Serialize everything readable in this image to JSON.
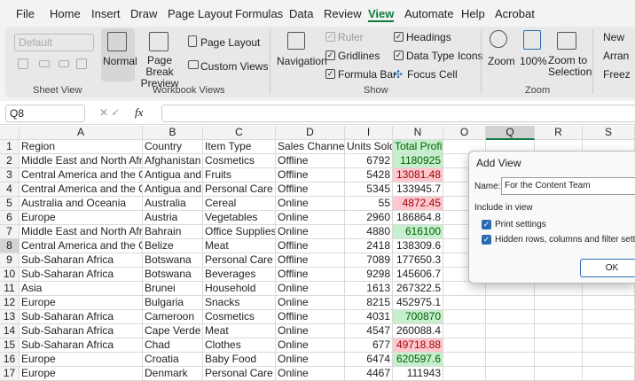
{
  "tabs": [
    "File",
    "Home",
    "Insert",
    "Draw",
    "Page Layout",
    "Formulas",
    "Data",
    "Review",
    "View",
    "Automate",
    "Help",
    "Acrobat"
  ],
  "ribbon": {
    "sheet_view": {
      "dropdown": "Default",
      "label": "Sheet View"
    },
    "workbook_views": {
      "normal": "Normal",
      "page_break_preview": "Page Break Preview",
      "page_layout": "Page Layout",
      "custom_views": "Custom Views",
      "label": "Workbook Views"
    },
    "show": {
      "navigation": "Navigation",
      "ruler": "Ruler",
      "gridlines": "Gridlines",
      "formula_bar": "Formula Bar",
      "headings": "Headings",
      "data_type_icons": "Data Type Icons",
      "focus_cell": "Focus Cell",
      "label": "Show"
    },
    "zoom": {
      "zoom": "Zoom",
      "hundred": "100%",
      "zoom_to_selection": "Zoom to Selection",
      "label": "Zoom"
    },
    "window": {
      "new": "New",
      "arrange": "Arran",
      "freeze": "Freez"
    }
  },
  "formula_bar": {
    "name_box": "Q8",
    "fx": "fx"
  },
  "sheet": {
    "columns": [
      "A",
      "B",
      "C",
      "D",
      "I",
      "N",
      "O",
      "Q",
      "R",
      "S"
    ],
    "rows": [
      {
        "number": 1,
        "cells": [
          "Region",
          "Country",
          "Item Type",
          "Sales Channel",
          "Units Sold",
          "Total Profit"
        ],
        "fill": "#c6efce"
      },
      {
        "number": 2,
        "cells": [
          "Middle East and North Africa",
          "Afghanistan",
          "Cosmetics",
          "Offline",
          "6792",
          "1180925"
        ],
        "fill": "#c6efce"
      },
      {
        "number": 3,
        "cells": [
          "Central America and the Car",
          "Antigua and B",
          "Fruits",
          "Offline",
          "5428",
          "13081.48"
        ],
        "fill": "#ffc7ce"
      },
      {
        "number": 4,
        "cells": [
          "Central America and the Car",
          "Antigua and B",
          "Personal Care",
          "Offline",
          "5345",
          "133945.7"
        ]
      },
      {
        "number": 5,
        "cells": [
          "Australia and Oceania",
          "Australia",
          "Cereal",
          "Online",
          "55",
          "4872.45"
        ],
        "fill": "#ffc7ce"
      },
      {
        "number": 6,
        "cells": [
          "Europe",
          "Austria",
          "Vegetables",
          "Online",
          "2960",
          "186864.8"
        ]
      },
      {
        "number": 7,
        "cells": [
          "Middle East and North Africa",
          "Bahrain",
          "Office Supplies",
          "Online",
          "4880",
          "616100"
        ],
        "fill": "#c6efce"
      },
      {
        "number": 8,
        "cells": [
          "Central America and the Car",
          "Belize",
          "Meat",
          "Offline",
          "2418",
          "138309.6"
        ]
      },
      {
        "number": 9,
        "cells": [
          "Sub-Saharan Africa",
          "Botswana",
          "Personal Care",
          "Offline",
          "7089",
          "177650.3"
        ]
      },
      {
        "number": 10,
        "cells": [
          "Sub-Saharan Africa",
          "Botswana",
          "Beverages",
          "Offline",
          "9298",
          "145606.7"
        ]
      },
      {
        "number": 11,
        "cells": [
          "Asia",
          "Brunei",
          "Household",
          "Online",
          "1613",
          "267322.5"
        ]
      },
      {
        "number": 12,
        "cells": [
          "Europe",
          "Bulgaria",
          "Snacks",
          "Online",
          "8215",
          "452975.1"
        ]
      },
      {
        "number": 13,
        "cells": [
          "Sub-Saharan Africa",
          "Cameroon",
          "Cosmetics",
          "Offline",
          "4031",
          "700870"
        ],
        "fill": "#c6efce"
      },
      {
        "number": 14,
        "cells": [
          "Sub-Saharan Africa",
          "Cape Verde",
          "Meat",
          "Online",
          "4547",
          "260088.4"
        ]
      },
      {
        "number": 15,
        "cells": [
          "Sub-Saharan Africa",
          "Chad",
          "Clothes",
          "Online",
          "677",
          "49718.88"
        ],
        "fill": "#ffc7ce"
      },
      {
        "number": 16,
        "cells": [
          "Europe",
          "Croatia",
          "Baby Food",
          "Online",
          "6474",
          "620597.6"
        ],
        "fill": "#c6efce"
      },
      {
        "number": 17,
        "cells": [
          "Europe",
          "Denmark",
          "Personal Care",
          "Online",
          "4467",
          "111943"
        ]
      }
    ]
  },
  "dialog": {
    "title": "Add View",
    "name_label": "Name:",
    "name_value": "For the Content Team",
    "group_label": "Include in view",
    "print_settings": "Print settings",
    "hidden_rows": "Hidden rows, columns and filter settings",
    "ok": "OK"
  }
}
